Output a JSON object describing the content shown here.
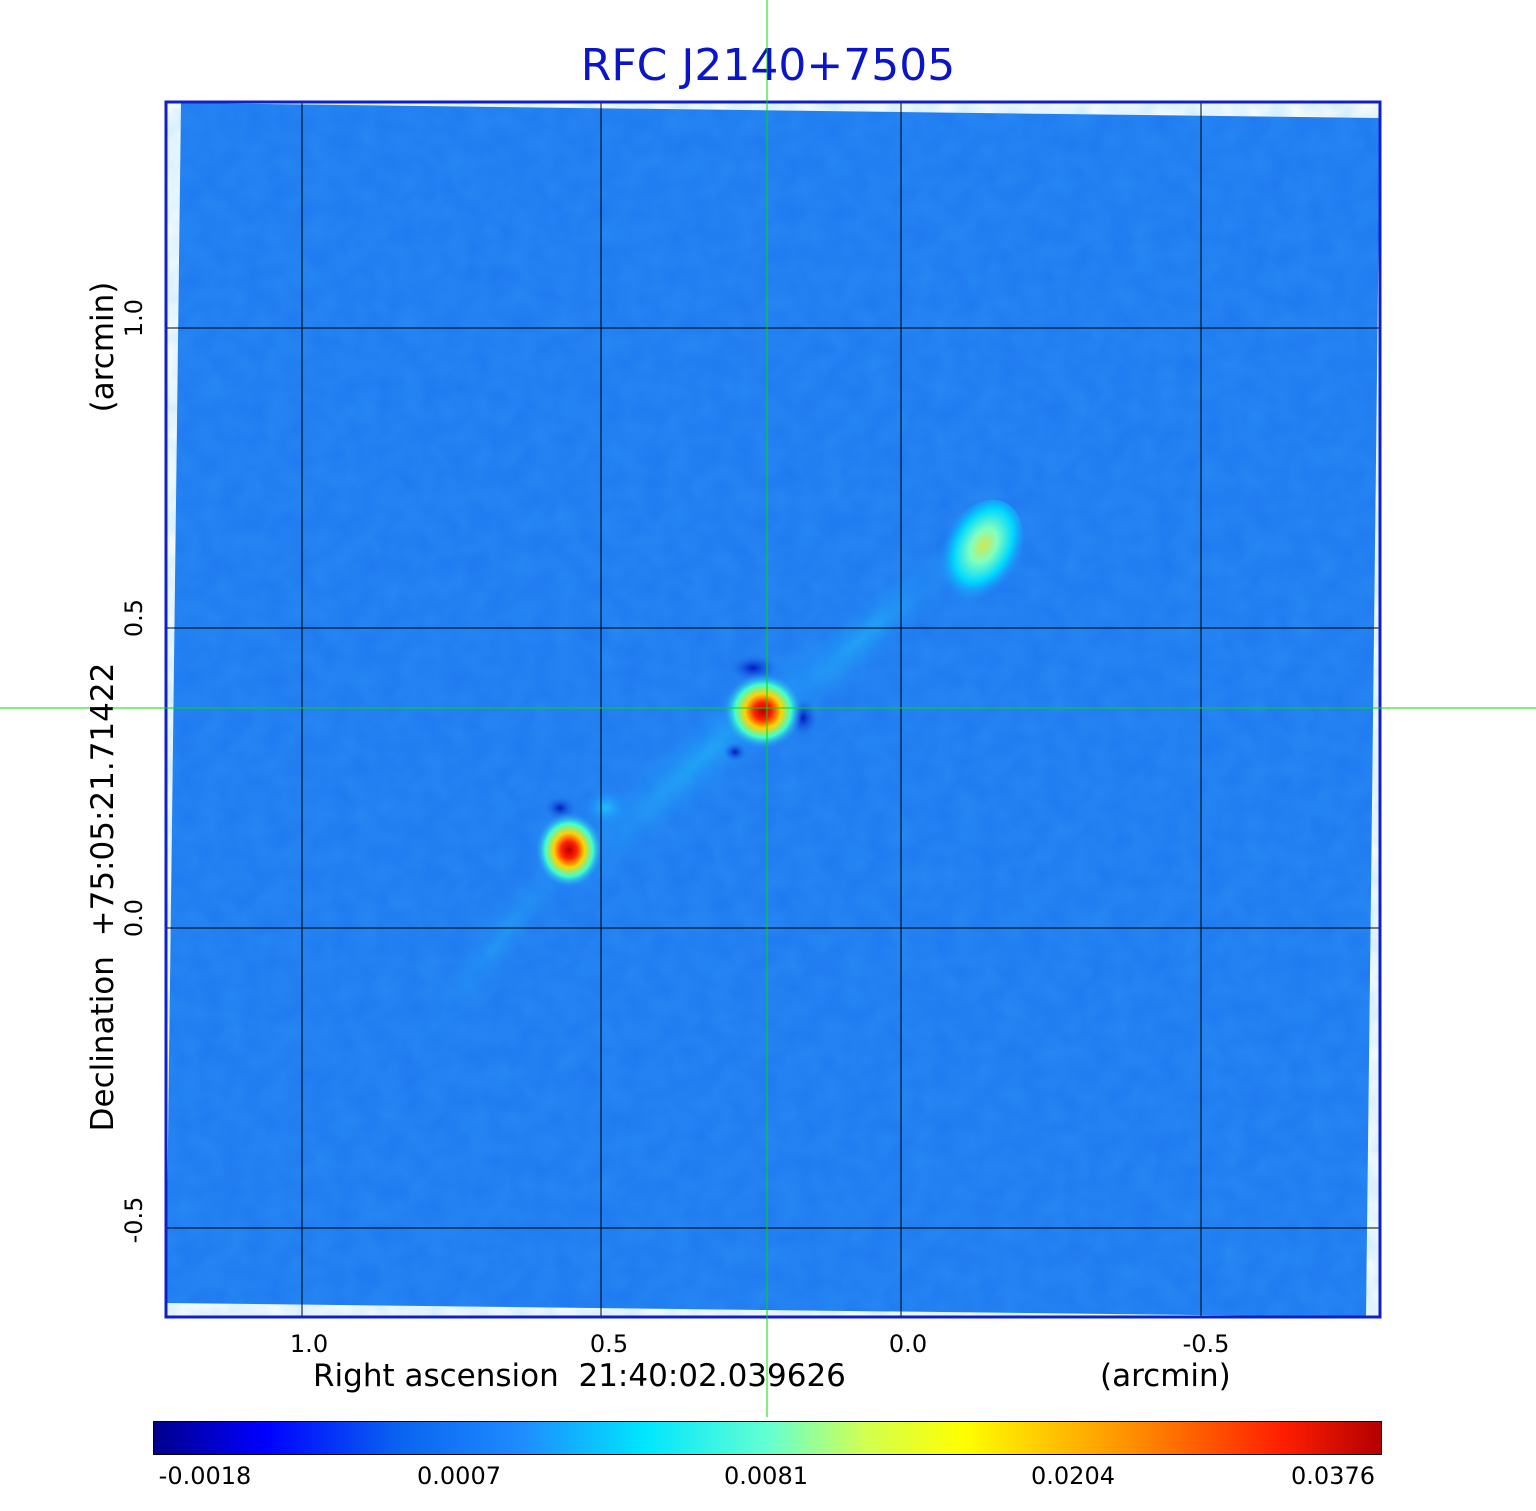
{
  "title": "RFC J2140+7505",
  "x_axis": {
    "label": "Right ascension  21:40:02.039626",
    "unit": "(arcmin)",
    "ticks": [
      "1.0",
      "0.5",
      "0.0",
      "-0.5"
    ]
  },
  "y_axis": {
    "label": "Declination  +75:05:21.71422",
    "unit": "(arcmin)",
    "ticks": [
      "1.0",
      "0.5",
      "0.0",
      "-0.5"
    ]
  },
  "colorbar": {
    "ticks": [
      "-0.0018",
      "0.0007",
      "0.0081",
      "0.0204",
      "0.0376"
    ],
    "colormap": "jet"
  },
  "colors": {
    "title": "#0a14c8",
    "frame": "#1020c8",
    "background_field": "#1e78f0",
    "crosshair": "#00dc00",
    "grid": "#000000"
  },
  "features": {
    "sources": [
      "core",
      "jet-knot",
      "lobe"
    ],
    "crosshair": true,
    "grid": true
  }
}
